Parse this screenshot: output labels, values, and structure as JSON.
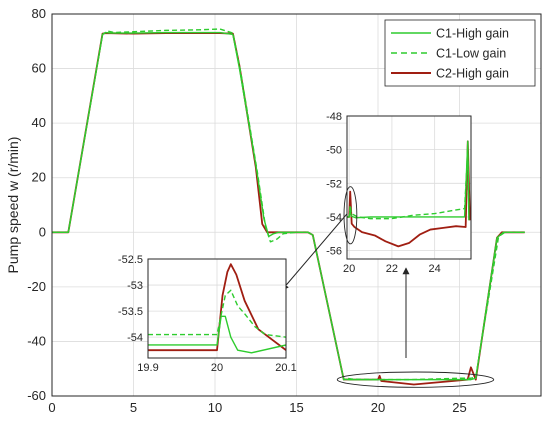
{
  "colors": {
    "c1_high": "#2ecc2e",
    "c1_low": "#2ecc2e",
    "c2_high": "#a01e12",
    "grid": "#dcdcdc",
    "axis": "#262626"
  },
  "chart_data": [
    {
      "id": "main",
      "type": "line",
      "xlabel": "",
      "ylabel": "Pump speed w (r/min)",
      "xlim": [
        0,
        30
      ],
      "ylim": [
        -60,
        80
      ],
      "xticks": [
        0,
        5,
        10,
        15,
        20,
        25
      ],
      "yticks": [
        -60,
        -40,
        -20,
        0,
        20,
        40,
        60,
        80
      ],
      "xtick_labels": [
        "0",
        "5",
        "10",
        "15",
        "20",
        "25"
      ],
      "ytick_labels": [
        "-60",
        "-40",
        "-20",
        "0",
        "20",
        "40",
        "60",
        "80"
      ],
      "grid": true,
      "legend_position": "top-right",
      "series": [
        {
          "name": "C1-High gain",
          "style": "solid",
          "x": [
            0,
            1,
            3.1,
            3.3,
            3.6,
            5,
            7,
            9,
            10.3,
            11.1,
            11.5,
            12.5,
            13.0,
            13.3,
            13.6,
            13.9,
            15,
            15.7,
            16,
            17.9,
            18.0,
            18.2,
            20,
            22,
            25,
            25.7,
            26,
            27.3,
            27.7,
            29
          ],
          "y": [
            0,
            0,
            72.5,
            73.2,
            73.0,
            73,
            73.2,
            73.2,
            73.2,
            72.5,
            60,
            25,
            5,
            -1.5,
            -0.5,
            0,
            0,
            0,
            -1,
            -54,
            -53.9,
            -54,
            -54,
            -54,
            -54,
            -54,
            -53.5,
            -2,
            0,
            0
          ]
        },
        {
          "name": "C1-Low gain",
          "style": "dashed",
          "x": [
            0,
            1,
            3.1,
            3.4,
            3.8,
            5,
            7,
            9,
            10.3,
            11.1,
            11.6,
            12.6,
            13.1,
            13.4,
            13.8,
            14.2,
            15,
            15.7,
            16,
            17.9,
            18.1,
            18.4,
            20,
            22,
            25,
            25.7,
            26,
            27.4,
            27.8,
            29
          ],
          "y": [
            0,
            0,
            72.5,
            73.8,
            73.2,
            73.5,
            74,
            74.2,
            74.5,
            73,
            58,
            22,
            2,
            -3.5,
            -2.5,
            -0.5,
            0,
            0,
            -1,
            -54,
            -53.5,
            -53.8,
            -54,
            -54,
            -53.5,
            -53.5,
            -53,
            -1.5,
            0,
            0
          ]
        },
        {
          "name": "C2-High gain",
          "style": "solid",
          "x": [
            0,
            1,
            3.1,
            3.3,
            5,
            7,
            9,
            10.3,
            11.1,
            11.5,
            12.5,
            12.9,
            13.2,
            13.5,
            15,
            15.7,
            16,
            17.9,
            18.0,
            18.3,
            20,
            20.1,
            20.2,
            22.2,
            25.5,
            25.7,
            26,
            27.3,
            27.6,
            29
          ],
          "y": [
            0,
            0,
            72.8,
            73,
            72.8,
            73,
            73,
            73,
            72.8,
            61,
            24,
            3,
            0,
            0,
            0,
            0,
            -1,
            -54,
            -53.9,
            -54,
            -54,
            -52.6,
            -54.5,
            -55.8,
            -54,
            -49.5,
            -54,
            -2,
            0,
            0
          ]
        }
      ],
      "annotations": [
        {
          "type": "ellipse",
          "description": "highlight region",
          "cx": 22.3,
          "cy": -54,
          "rx": 4.8,
          "ry": 2.8
        }
      ]
    },
    {
      "id": "inset_right",
      "type": "line",
      "xlim": [
        19.9,
        25.7
      ],
      "ylim": [
        -56.5,
        -48
      ],
      "xticks": [
        20,
        22,
        24
      ],
      "yticks": [
        -56,
        -54,
        -52,
        -50,
        -48
      ],
      "xtick_labels": [
        "20",
        "22",
        "24"
      ],
      "ytick_labels": [
        "-56",
        "-54",
        "-52",
        "-50",
        "-48"
      ],
      "grid": true,
      "series": [
        {
          "name": "C1-High gain",
          "style": "solid",
          "x": [
            19.9,
            20.0,
            20.05,
            20.1,
            20.3,
            21,
            23,
            25.4,
            25.55,
            25.6
          ],
          "y": [
            -54,
            -54,
            -53.6,
            -53.95,
            -54.05,
            -54,
            -54,
            -54,
            -49.5,
            -54.2
          ]
        },
        {
          "name": "C1-Low gain",
          "style": "dashed",
          "x": [
            19.9,
            20.0,
            20.05,
            20.1,
            20.4,
            21,
            22,
            23,
            24,
            25.4,
            25.55,
            25.6
          ],
          "y": [
            -54,
            -54,
            -53.3,
            -53.8,
            -54,
            -54.1,
            -54.1,
            -53.9,
            -53.8,
            -53.5,
            -50,
            -53.5
          ]
        },
        {
          "name": "C2-High gain",
          "style": "solid",
          "x": [
            19.9,
            20.0,
            20.05,
            20.12,
            20.25,
            20.6,
            21.2,
            21.7,
            22.3,
            22.8,
            23.3,
            23.8,
            24.4,
            25,
            25.45,
            25.55,
            25.65
          ],
          "y": [
            -54,
            -54,
            -52.5,
            -54.4,
            -54.6,
            -54.9,
            -55.1,
            -55.45,
            -55.75,
            -55.55,
            -55.05,
            -54.75,
            -54.65,
            -54.55,
            -54.6,
            -49.5,
            -54.2
          ]
        }
      ],
      "annotations": [
        {
          "type": "ellipse",
          "description": "highlight region",
          "cx": 20.06,
          "cy": -53.9,
          "rx": 0.3,
          "ry": 1.7
        }
      ]
    },
    {
      "id": "inset_left",
      "type": "line",
      "xlim": [
        19.9,
        20.1
      ],
      "ylim": [
        -54.4,
        -52.5
      ],
      "xticks": [
        19.9,
        20,
        20.1
      ],
      "yticks": [
        -54,
        -53.5,
        -53,
        -52.5
      ],
      "xtick_labels": [
        "19.9",
        "20",
        "20.1"
      ],
      "ytick_labels": [
        "-54",
        "-53.5",
        "-53",
        "-52.5"
      ],
      "grid": true,
      "series": [
        {
          "name": "C1-High gain",
          "style": "solid",
          "x": [
            19.9,
            20.0,
            20.006,
            20.012,
            20.02,
            20.03,
            20.05,
            20.1
          ],
          "y": [
            -54.15,
            -54.15,
            -53.6,
            -53.6,
            -54.0,
            -54.25,
            -54.3,
            -54.15
          ]
        },
        {
          "name": "C1-Low gain",
          "style": "dashed",
          "x": [
            19.9,
            20.0,
            20.012,
            20.02,
            20.03,
            20.04,
            20.055,
            20.07,
            20.1
          ],
          "y": [
            -53.95,
            -53.95,
            -53.2,
            -53.1,
            -53.4,
            -53.55,
            -53.8,
            -53.95,
            -54.0
          ]
        },
        {
          "name": "C2-High gain",
          "style": "solid",
          "x": [
            19.9,
            20.0,
            20.008,
            20.015,
            20.02,
            20.028,
            20.04,
            20.06,
            20.1
          ],
          "y": [
            -54.25,
            -54.25,
            -53.2,
            -52.75,
            -52.6,
            -52.8,
            -53.3,
            -53.85,
            -54.25
          ]
        }
      ]
    }
  ]
}
